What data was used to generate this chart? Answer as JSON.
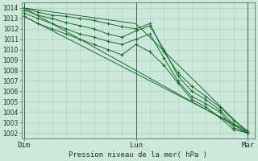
{
  "title": "Pression niveau de la mer( hPa )",
  "bg_color": "#cce8dc",
  "grid_color": "#aacfbc",
  "line_color": "#1a6b2a",
  "ylim": [
    1001.5,
    1014.5
  ],
  "yticks": [
    1002,
    1003,
    1004,
    1005,
    1006,
    1007,
    1008,
    1009,
    1010,
    1011,
    1012,
    1013,
    1014
  ],
  "xtick_labels": [
    "Dim",
    "Lun",
    "Mar"
  ],
  "xtick_positions": [
    0,
    24,
    48
  ],
  "xlim": [
    -0.5,
    49.5
  ],
  "figsize": [
    3.2,
    2.0
  ],
  "dpi": 100,
  "series": [
    {
      "x": [
        0,
        3,
        6,
        9,
        12,
        15,
        18,
        21,
        24,
        27,
        30,
        33,
        36,
        39,
        42,
        45,
        48
      ],
      "y": [
        1014.0,
        1013.6,
        1013.3,
        1013.2,
        1013.0,
        1012.8,
        1012.5,
        1012.2,
        1012.0,
        1012.5,
        1009.8,
        1007.8,
        1006.5,
        1005.5,
        1004.5,
        1003.2,
        1002.2
      ],
      "marker": true
    },
    {
      "x": [
        0,
        3,
        6,
        9,
        12,
        15,
        18,
        21,
        24,
        27,
        30,
        33,
        36,
        39,
        42,
        45,
        48
      ],
      "y": [
        1013.8,
        1013.3,
        1013.0,
        1012.6,
        1012.3,
        1012.0,
        1011.5,
        1011.2,
        1011.8,
        1012.3,
        1010.0,
        1007.5,
        1006.0,
        1005.2,
        1004.2,
        1002.8,
        1002.0
      ],
      "marker": true
    },
    {
      "x": [
        0,
        3,
        6,
        9,
        12,
        15,
        18,
        21,
        24,
        27,
        30,
        33,
        36,
        39,
        42,
        45,
        48
      ],
      "y": [
        1013.5,
        1013.0,
        1012.5,
        1012.0,
        1011.5,
        1011.2,
        1010.8,
        1010.5,
        1011.0,
        1011.5,
        1009.2,
        1007.0,
        1005.5,
        1004.8,
        1004.0,
        1002.5,
        1002.0
      ],
      "marker": true
    },
    {
      "x": [
        0,
        3,
        6,
        9,
        12,
        15,
        18,
        21,
        24,
        27,
        30,
        33,
        36,
        39,
        42,
        45,
        48
      ],
      "y": [
        1013.2,
        1012.5,
        1012.0,
        1011.5,
        1011.0,
        1010.5,
        1010.0,
        1009.5,
        1010.5,
        1009.8,
        1008.5,
        1006.8,
        1005.2,
        1004.5,
        1003.5,
        1002.3,
        1002.0
      ],
      "marker": true
    },
    {
      "x": [
        0,
        48
      ],
      "y": [
        1014.0,
        1002.0
      ],
      "marker": false
    },
    {
      "x": [
        0,
        48
      ],
      "y": [
        1013.2,
        1002.2
      ],
      "marker": false
    },
    {
      "x": [
        0,
        24,
        48
      ],
      "y": [
        1014.0,
        1012.5,
        1002.0
      ],
      "marker": false
    }
  ]
}
